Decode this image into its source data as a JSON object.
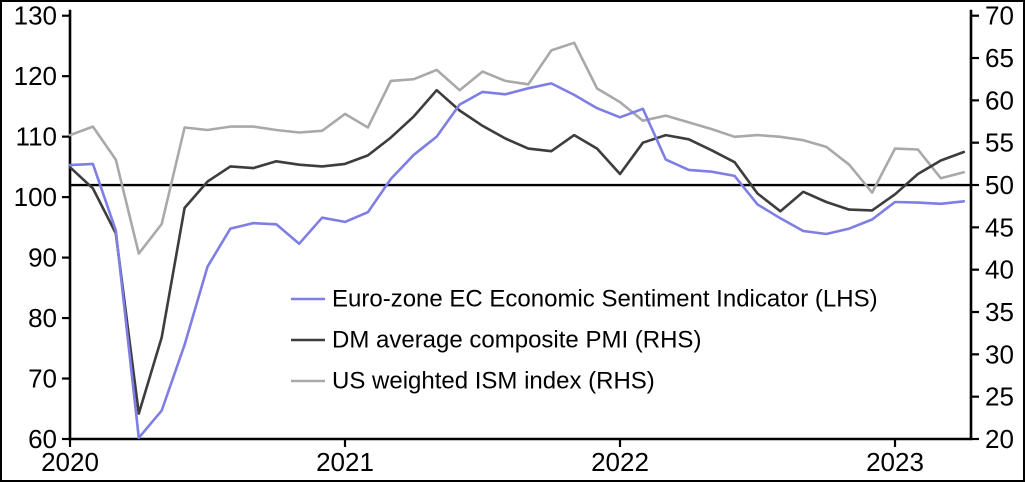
{
  "chart_data": {
    "type": "line",
    "title": "",
    "x_axis_label": "",
    "x_unit": "month",
    "x": [
      "2020-01",
      "2020-02",
      "2020-03",
      "2020-04",
      "2020-05",
      "2020-06",
      "2020-07",
      "2020-08",
      "2020-09",
      "2020-10",
      "2020-11",
      "2020-12",
      "2021-01",
      "2021-02",
      "2021-03",
      "2021-04",
      "2021-05",
      "2021-06",
      "2021-07",
      "2021-08",
      "2021-09",
      "2021-10",
      "2021-11",
      "2021-12",
      "2022-01",
      "2022-02",
      "2022-03",
      "2022-04",
      "2022-05",
      "2022-06",
      "2022-07",
      "2022-08",
      "2022-09",
      "2022-10",
      "2022-11",
      "2022-12",
      "2023-01",
      "2023-02",
      "2023-03",
      "2023-04"
    ],
    "x_tick_labels": [
      "2020",
      "2021",
      "2022",
      "2023"
    ],
    "x_tick_month_indices": [
      0,
      12,
      24,
      36
    ],
    "left_axis": {
      "min": 60,
      "max": 130,
      "ticks": [
        130,
        120,
        110,
        100,
        90,
        80,
        70,
        60
      ]
    },
    "right_axis": {
      "min": 20,
      "max": 70,
      "ticks": [
        70,
        65,
        60,
        55,
        50,
        45,
        40,
        35,
        30,
        25,
        20
      ]
    },
    "reference_line": {
      "axis": "right",
      "value": 50,
      "color": "#000000"
    },
    "grid": false,
    "legend_position": "inside-lower-left",
    "series": [
      {
        "name": "Euro-zone EC Economic Sentiment Indicator (LHS)",
        "axis": "left",
        "color": "#7e7ee4",
        "values": [
          105.3,
          105.5,
          94.5,
          60.2,
          64.7,
          75.6,
          88.5,
          94.8,
          95.7,
          95.5,
          92.3,
          96.6,
          95.9,
          97.5,
          103.0,
          107.0,
          110.0,
          115.3,
          117.4,
          117.0,
          118.0,
          118.8,
          116.9,
          114.7,
          113.2,
          114.6,
          106.2,
          104.5,
          104.2,
          103.5,
          98.8,
          96.5,
          94.4,
          93.9,
          94.8,
          96.3,
          99.2,
          99.1,
          98.9,
          99.3
        ]
      },
      {
        "name": "DM average composite PMI (RHS)",
        "axis": "right",
        "color": "#3d3d3d",
        "values": [
          52.1,
          49.6,
          44.3,
          23.0,
          32.0,
          47.3,
          50.4,
          52.2,
          52.0,
          52.8,
          52.4,
          52.2,
          52.5,
          53.5,
          55.6,
          58.1,
          61.2,
          58.8,
          57.0,
          55.5,
          54.3,
          54.0,
          55.9,
          54.3,
          51.3,
          55.0,
          55.9,
          55.4,
          54.1,
          52.7,
          49.0,
          46.9,
          49.2,
          48.0,
          47.1,
          47.0,
          48.9,
          51.3,
          52.9,
          53.9
        ]
      },
      {
        "name": "US weighted ISM index (RHS)",
        "axis": "right",
        "color": "#a9a9a9",
        "values": [
          55.9,
          56.9,
          53.0,
          41.9,
          45.4,
          56.8,
          56.5,
          56.9,
          56.9,
          56.5,
          56.2,
          56.4,
          58.4,
          56.8,
          62.3,
          62.5,
          63.6,
          61.2,
          63.4,
          62.3,
          61.9,
          65.9,
          66.8,
          61.4,
          59.8,
          57.6,
          58.2,
          57.4,
          56.6,
          55.7,
          55.9,
          55.7,
          55.3,
          54.5,
          52.4,
          49.1,
          54.3,
          54.2,
          50.8,
          51.5
        ]
      }
    ],
    "colors": {
      "axis": "#000000",
      "background": "#ffffff",
      "frame_border": "#000000"
    }
  }
}
